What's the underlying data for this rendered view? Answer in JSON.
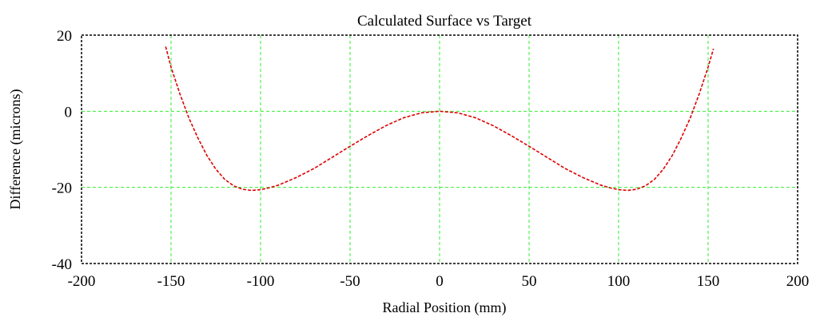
{
  "chart_data": {
    "type": "line",
    "title": "Calculated Surface vs Target",
    "xlabel": "Radial Position (mm)",
    "ylabel": "Difference (microns)",
    "xlim": [
      -200,
      200
    ],
    "ylim": [
      -40,
      20
    ],
    "x_ticks": [
      -200,
      -150,
      -100,
      -50,
      0,
      50,
      100,
      150,
      200
    ],
    "y_ticks": [
      -40,
      -20,
      0,
      20
    ],
    "x_tick_labels": [
      "-200",
      "-150",
      "-100",
      "-50",
      "0",
      "50",
      "100",
      "150",
      "200"
    ],
    "y_tick_labels": [
      "-40",
      "-20",
      "0",
      "20"
    ],
    "grid": true,
    "grid_color": "#33ee33",
    "line_style": "dashed",
    "series": [
      {
        "color": "#dd0000",
        "x": [
          -153,
          -150,
          -145,
          -140,
          -135,
          -130,
          -125,
          -120,
          -115,
          -110,
          -105,
          -100,
          -95,
          -90,
          -80,
          -70,
          -60,
          -50,
          -40,
          -30,
          -20,
          -10,
          0,
          10,
          20,
          30,
          40,
          50,
          60,
          70,
          80,
          90,
          95,
          100,
          105,
          110,
          115,
          120,
          125,
          130,
          135,
          140,
          145,
          150,
          153
        ],
        "y": [
          17.0,
          11.6,
          4.5,
          -1.8,
          -7.0,
          -11.6,
          -15.2,
          -17.9,
          -19.6,
          -20.5,
          -20.8,
          -20.6,
          -20.1,
          -19.4,
          -17.4,
          -15.0,
          -12.1,
          -9.2,
          -6.4,
          -3.8,
          -1.7,
          -0.4,
          0.0,
          -0.4,
          -1.7,
          -3.8,
          -6.4,
          -9.2,
          -12.1,
          -15.0,
          -17.4,
          -19.4,
          -20.1,
          -20.6,
          -20.8,
          -20.5,
          -19.6,
          -17.9,
          -15.2,
          -11.6,
          -7.0,
          -1.8,
          4.5,
          11.6,
          16.4
        ]
      }
    ]
  }
}
